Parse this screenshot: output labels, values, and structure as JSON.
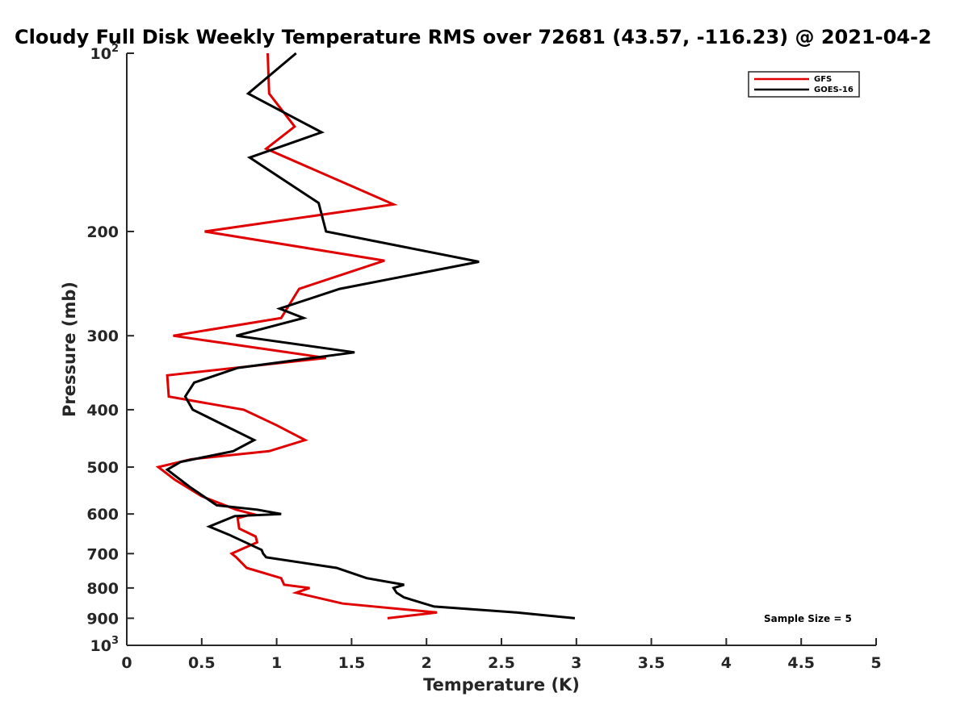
{
  "chart_data": {
    "type": "line",
    "title": "Cloudy Full Disk Weekly Temperature RMS over 72681 (43.57, -116.23) @ 2021-04-2",
    "xlabel": "Temperature (K)",
    "ylabel": "Pressure (mb)",
    "xlim": [
      0,
      5
    ],
    "ylim": [
      100,
      1000
    ],
    "yscale": "log",
    "y_reversed": true,
    "x_ticks": [
      0,
      0.5,
      1,
      1.5,
      2,
      2.5,
      3,
      3.5,
      4,
      4.5,
      5
    ],
    "x_tick_labels": [
      "0",
      "0.5",
      "1",
      "1.5",
      "2",
      "2.5",
      "3",
      "3.5",
      "4",
      "4.5",
      "5"
    ],
    "y_ticks": [
      {
        "value": 100,
        "base": "10",
        "exp": "2"
      },
      {
        "value": 200,
        "label": "200"
      },
      {
        "value": 300,
        "label": "300"
      },
      {
        "value": 400,
        "label": "400"
      },
      {
        "value": 500,
        "label": "500"
      },
      {
        "value": 600,
        "label": "600"
      },
      {
        "value": 700,
        "label": "700"
      },
      {
        "value": 800,
        "label": "800"
      },
      {
        "value": 900,
        "label": "900"
      },
      {
        "value": 1000,
        "base": "10",
        "exp": "3"
      }
    ],
    "legend_position": "top-right",
    "grid": false,
    "annotation": "Sample Size = 5",
    "series": [
      {
        "name": "GFS",
        "color": "#e00000",
        "points": [
          [
            0.94,
            100
          ],
          [
            0.95,
            117
          ],
          [
            1.12,
            133
          ],
          [
            0.93,
            145
          ],
          [
            1.78,
            180
          ],
          [
            0.52,
            200
          ],
          [
            1.72,
            224
          ],
          [
            1.15,
            250
          ],
          [
            1.03,
            280
          ],
          [
            0.31,
            300
          ],
          [
            1.33,
            327
          ],
          [
            0.27,
            350
          ],
          [
            0.28,
            380
          ],
          [
            0.78,
            400
          ],
          [
            1.0,
            425
          ],
          [
            1.19,
            450
          ],
          [
            0.95,
            470
          ],
          [
            0.43,
            485
          ],
          [
            0.21,
            500
          ],
          [
            0.32,
            525
          ],
          [
            0.5,
            560
          ],
          [
            0.73,
            590
          ],
          [
            0.84,
            600
          ],
          [
            0.74,
            610
          ],
          [
            0.75,
            635
          ],
          [
            0.86,
            655
          ],
          [
            0.87,
            670
          ],
          [
            0.7,
            700
          ],
          [
            0.73,
            710
          ],
          [
            0.8,
            740
          ],
          [
            1.03,
            770
          ],
          [
            1.05,
            790
          ],
          [
            1.22,
            800
          ],
          [
            1.13,
            815
          ],
          [
            1.44,
            850
          ],
          [
            2.07,
            880
          ],
          [
            1.74,
            900
          ]
        ]
      },
      {
        "name": "GOES-16",
        "color": "#000000",
        "points": [
          [
            1.13,
            100
          ],
          [
            0.81,
            117
          ],
          [
            1.3,
            136
          ],
          [
            0.82,
            150
          ],
          [
            1.28,
            179
          ],
          [
            1.33,
            200
          ],
          [
            2.35,
            225
          ],
          [
            1.42,
            250
          ],
          [
            1.02,
            270
          ],
          [
            1.18,
            280
          ],
          [
            0.73,
            300
          ],
          [
            1.52,
            320
          ],
          [
            0.74,
            340
          ],
          [
            0.45,
            360
          ],
          [
            0.39,
            380
          ],
          [
            0.44,
            400
          ],
          [
            0.61,
            420
          ],
          [
            0.85,
            450
          ],
          [
            0.71,
            470
          ],
          [
            0.36,
            490
          ],
          [
            0.27,
            505
          ],
          [
            0.42,
            540
          ],
          [
            0.6,
            580
          ],
          [
            0.87,
            590
          ],
          [
            1.03,
            600
          ],
          [
            0.72,
            605
          ],
          [
            0.55,
            630
          ],
          [
            0.68,
            650
          ],
          [
            0.9,
            690
          ],
          [
            0.91,
            700
          ],
          [
            0.93,
            710
          ],
          [
            1.4,
            740
          ],
          [
            1.6,
            770
          ],
          [
            1.85,
            790
          ],
          [
            1.78,
            800
          ],
          [
            1.8,
            815
          ],
          [
            1.85,
            830
          ],
          [
            2.05,
            860
          ],
          [
            2.6,
            880
          ],
          [
            2.99,
            900
          ]
        ]
      }
    ]
  }
}
